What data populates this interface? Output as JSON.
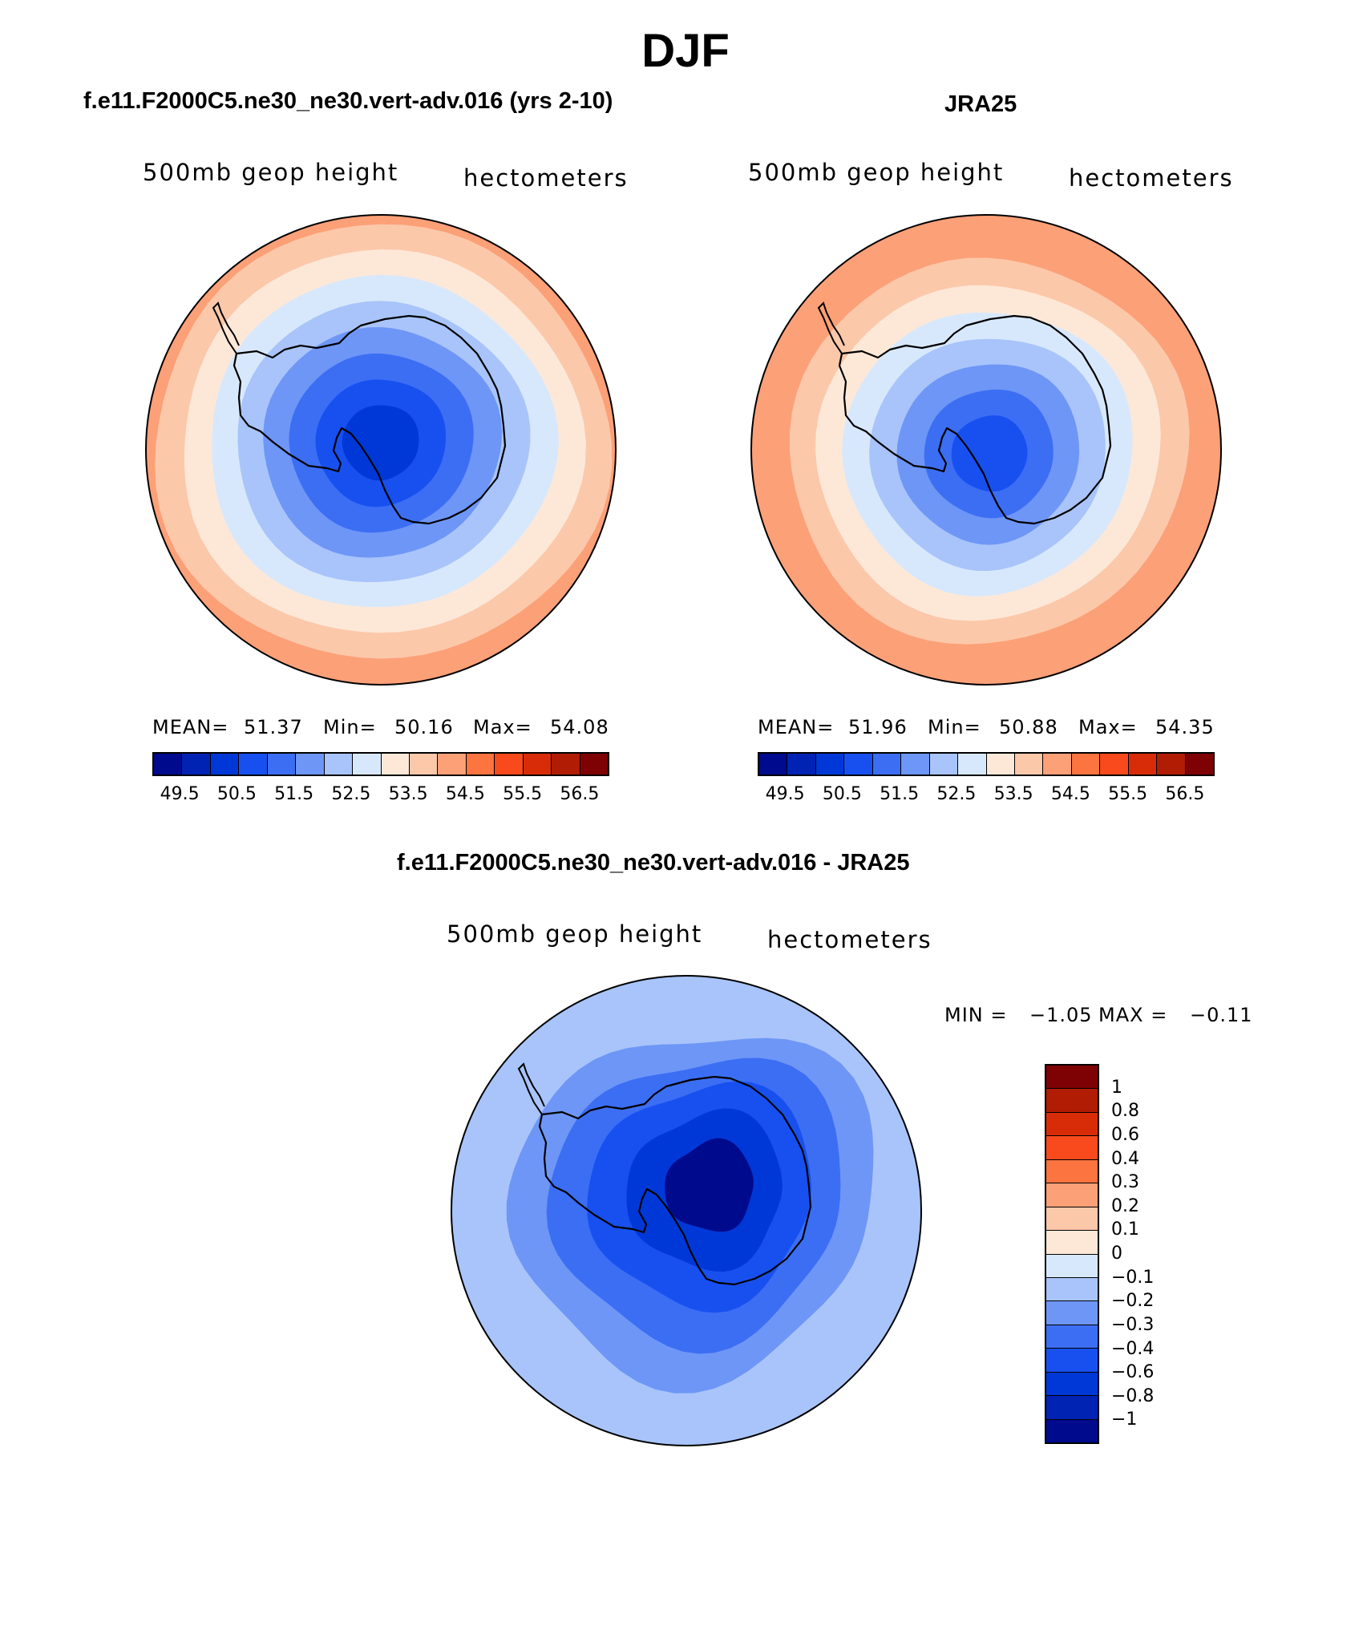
{
  "title": "DJF",
  "colors": {
    "palette": [
      "#000a8c",
      "#0023b4",
      "#0038d8",
      "#1850f0",
      "#3c6ef4",
      "#6e96f6",
      "#a8c4fa",
      "#d8e8fc",
      "#fde8d8",
      "#fcc8aa",
      "#fca078",
      "#fc7440",
      "#f84a1c",
      "#d82c08",
      "#b01c04",
      "#7e0204"
    ],
    "diff_palette": [
      "#000a8c",
      "#0023b4",
      "#0038d8",
      "#1850f0",
      "#3c6ef4",
      "#6e96f6",
      "#a8c4fa",
      "#d8e8fc",
      "#fde8d8",
      "#fcc8aa",
      "#fca078",
      "#fc7440",
      "#f84a1c",
      "#d82c08",
      "#b01c04",
      "#7e0204"
    ],
    "coast": "#000000"
  },
  "chart_data": [
    {
      "type": "heatmap",
      "projection": "polar-stereographic (south pole)",
      "title": "f.e11.F2000C5.ne30_ne30.vert-adv.016 (yrs 2-10)",
      "left_label": "500mb geop height",
      "right_label": "hectometers",
      "stats": {
        "mean_label": "MEAN=",
        "mean": "51.37",
        "min_label": "Min=",
        "min": "50.16",
        "max_label": "Max=",
        "max": "54.08"
      },
      "colorbar_levels": [
        49.5,
        50,
        50.5,
        51,
        51.5,
        52,
        52.5,
        53,
        53.5,
        54,
        54.5,
        55,
        55.5,
        56,
        56.5
      ],
      "colorbar_tick_labels": [
        "49.5",
        "50.5",
        "51.5",
        "52.5",
        "53.5",
        "54.5",
        "55.5",
        "56.5"
      ],
      "field_rings_pole_to_edge": [
        50.16,
        50.5,
        51,
        51.5,
        52,
        52.5,
        53,
        53.5,
        54.08
      ]
    },
    {
      "type": "heatmap",
      "projection": "polar-stereographic (south pole)",
      "title": "JRA25",
      "left_label": "500mb geop height",
      "right_label": "hectometers",
      "stats": {
        "mean_label": "MEAN=",
        "mean": "51.96",
        "min_label": "Min=",
        "min": "50.88",
        "max_label": "Max=",
        "max": "54.35"
      },
      "colorbar_levels": [
        49.5,
        50,
        50.5,
        51,
        51.5,
        52,
        52.5,
        53,
        53.5,
        54,
        54.5,
        55,
        55.5,
        56,
        56.5
      ],
      "colorbar_tick_labels": [
        "49.5",
        "50.5",
        "51.5",
        "52.5",
        "53.5",
        "54.5",
        "55.5",
        "56.5"
      ],
      "field_rings_pole_to_edge": [
        50.88,
        51,
        51.5,
        52,
        52.5,
        53,
        53.5,
        54,
        54.35
      ]
    },
    {
      "type": "heatmap",
      "projection": "polar-stereographic (south pole)",
      "title": "f.e11.F2000C5.ne30_ne30.vert-adv.016 - JRA25",
      "left_label": "500mb geop height",
      "right_label": "hectometers",
      "stats": {
        "min_label": "MIN =",
        "min": "−1.05",
        "max_label": "MAX =",
        "max": "−0.11"
      },
      "colorbar_levels": [
        -1,
        -0.8,
        -0.6,
        -0.4,
        -0.3,
        -0.2,
        -0.1,
        0,
        0.1,
        0.2,
        0.3,
        0.4,
        0.6,
        0.8,
        1
      ],
      "colorbar_tick_labels": [
        "−1",
        "−0.8",
        "−0.6",
        "−0.4",
        "−0.3",
        "−0.2",
        "−0.1",
        "0",
        "0.1",
        "0.2",
        "0.3",
        "0.4",
        "0.6",
        "0.8",
        "1"
      ],
      "field_rings_pole_to_edge": [
        -1.05,
        -0.8,
        -0.6,
        -0.4,
        -0.3,
        -0.2,
        -0.11
      ]
    }
  ]
}
